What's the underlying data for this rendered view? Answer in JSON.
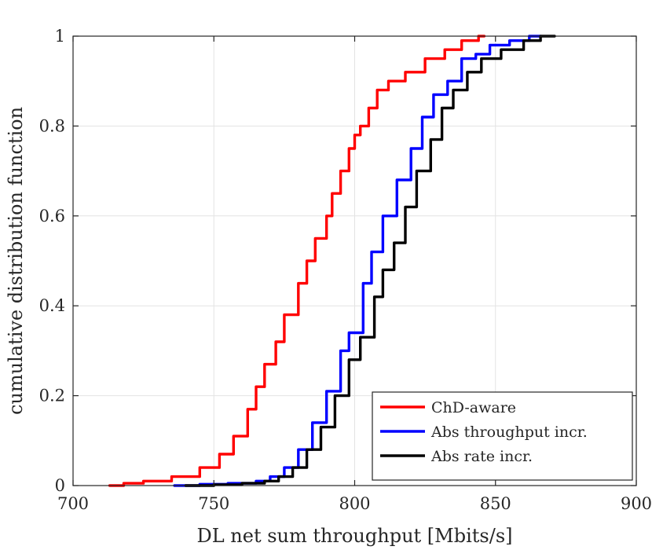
{
  "chart_data": {
    "type": "line",
    "title": "",
    "xlabel": "DL net sum throughput [Mbits/s]",
    "ylabel": "cumulative distribution function",
    "xlim": [
      700,
      900
    ],
    "ylim": [
      0,
      1
    ],
    "xticks": [
      700,
      750,
      800,
      850,
      900
    ],
    "yticks": [
      0,
      0.2,
      0.4,
      0.6,
      0.8,
      1
    ],
    "xtick_labels": [
      "700",
      "750",
      "800",
      "850",
      "900"
    ],
    "ytick_labels": [
      "0",
      "0.2",
      "0.4",
      "0.6",
      "0.8",
      "1"
    ],
    "grid": true,
    "legend_position": "bottom-right",
    "series": [
      {
        "name": "ChD-aware",
        "color": "#ff0000",
        "x": [
          713,
          718,
          725,
          735,
          745,
          752,
          757,
          762,
          765,
          768,
          772,
          775,
          780,
          783,
          786,
          790,
          792,
          795,
          798,
          800,
          802,
          805,
          808,
          812,
          818,
          825,
          832,
          838,
          844,
          846
        ],
        "y": [
          0,
          0.005,
          0.01,
          0.02,
          0.04,
          0.07,
          0.11,
          0.17,
          0.22,
          0.27,
          0.32,
          0.38,
          0.45,
          0.5,
          0.55,
          0.6,
          0.65,
          0.7,
          0.75,
          0.78,
          0.8,
          0.84,
          0.88,
          0.9,
          0.92,
          0.95,
          0.97,
          0.99,
          1.0,
          1.0
        ]
      },
      {
        "name": "Abs throughput incr.",
        "color": "#0000ff",
        "x": [
          736,
          745,
          755,
          765,
          770,
          775,
          780,
          785,
          790,
          795,
          798,
          803,
          806,
          810,
          815,
          820,
          824,
          828,
          833,
          838,
          843,
          848,
          855,
          862,
          866
        ],
        "y": [
          0,
          0.003,
          0.005,
          0.01,
          0.02,
          0.04,
          0.08,
          0.14,
          0.21,
          0.3,
          0.34,
          0.45,
          0.52,
          0.6,
          0.68,
          0.75,
          0.82,
          0.87,
          0.9,
          0.95,
          0.96,
          0.98,
          0.99,
          1.0,
          1.0
        ]
      },
      {
        "name": "Abs rate incr.",
        "color": "#000000",
        "x": [
          740,
          750,
          760,
          768,
          773,
          778,
          783,
          788,
          793,
          798,
          802,
          807,
          810,
          814,
          818,
          822,
          827,
          831,
          835,
          840,
          845,
          852,
          860,
          866,
          871
        ],
        "y": [
          0,
          0.002,
          0.005,
          0.01,
          0.02,
          0.04,
          0.08,
          0.13,
          0.2,
          0.28,
          0.33,
          0.42,
          0.48,
          0.54,
          0.62,
          0.7,
          0.77,
          0.84,
          0.88,
          0.92,
          0.95,
          0.97,
          0.99,
          1.0,
          1.0
        ]
      }
    ]
  }
}
